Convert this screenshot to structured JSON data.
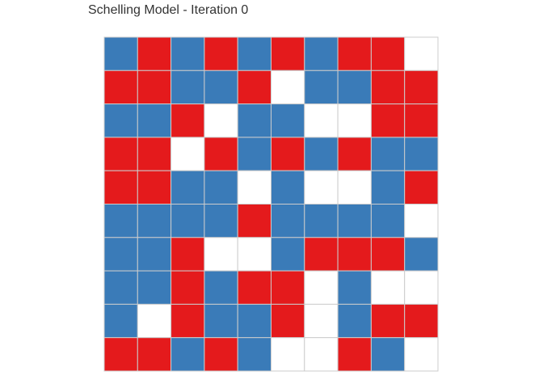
{
  "chart_data": {
    "type": "heatmap",
    "title": "Schelling Model - Iteration 0",
    "rows": 10,
    "cols": 10,
    "legend": {
      "0": "empty",
      "1": "blue",
      "2": "red"
    },
    "colors": {
      "0": "#ffffff",
      "1": "#3a7bb8",
      "2": "#e41a1c",
      "grid_line": "#cccccc"
    },
    "grid": [
      [
        1,
        2,
        1,
        2,
        1,
        2,
        1,
        2,
        2,
        0
      ],
      [
        2,
        2,
        1,
        1,
        2,
        0,
        1,
        1,
        2,
        2
      ],
      [
        1,
        1,
        2,
        0,
        1,
        1,
        0,
        0,
        2,
        2
      ],
      [
        2,
        2,
        0,
        2,
        1,
        2,
        1,
        2,
        1,
        1
      ],
      [
        2,
        2,
        1,
        1,
        0,
        1,
        0,
        0,
        1,
        2
      ],
      [
        1,
        1,
        1,
        1,
        2,
        1,
        1,
        1,
        1,
        0
      ],
      [
        1,
        1,
        2,
        0,
        0,
        1,
        2,
        2,
        2,
        1
      ],
      [
        1,
        1,
        2,
        1,
        2,
        2,
        0,
        1,
        0,
        0
      ],
      [
        1,
        0,
        2,
        1,
        1,
        2,
        0,
        1,
        2,
        2
      ],
      [
        2,
        2,
        1,
        2,
        1,
        0,
        0,
        2,
        1,
        0
      ]
    ]
  }
}
